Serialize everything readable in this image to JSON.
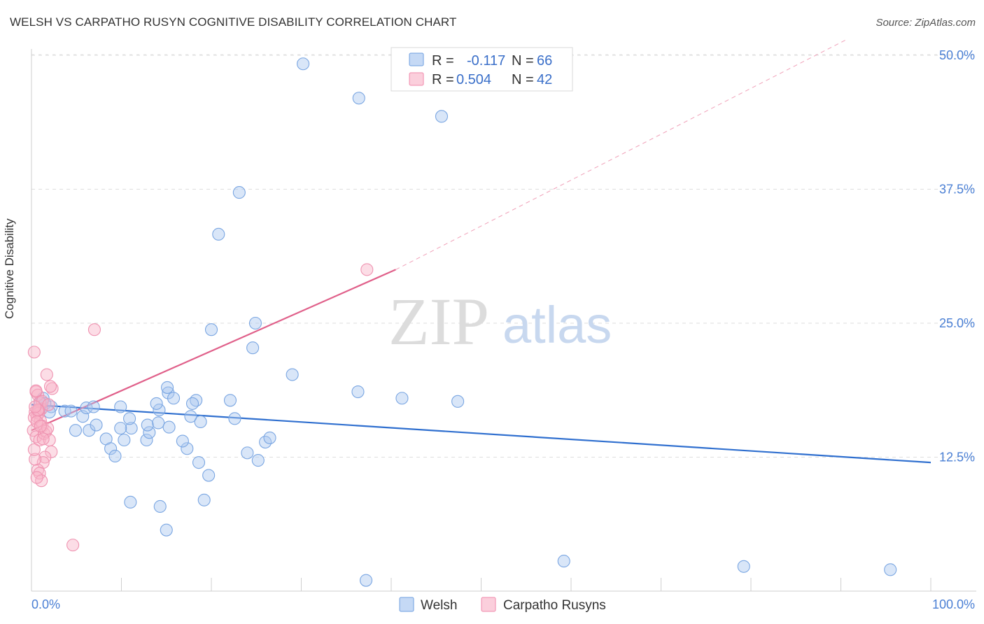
{
  "title": "WELSH VS CARPATHO RUSYN COGNITIVE DISABILITY CORRELATION CHART",
  "source": "Source: ZipAtlas.com",
  "watermark": {
    "zip": "ZIP",
    "atlas": "atlas"
  },
  "colors": {
    "welsh": "#6f9fe0",
    "welsh_line": "#2f6fcf",
    "rusyn": "#f08aab",
    "rusyn_line": "#e0608a",
    "axis_text": "#4a7fd4"
  },
  "legend": {
    "rows": [
      {
        "r_label": "R = ",
        "r_value": "-0.117",
        "n_label": "N = ",
        "n_value": "66"
      },
      {
        "r_label": "R = ",
        "r_value": "0.504",
        "n_label": "N = ",
        "n_value": "42"
      }
    ]
  },
  "chart_data": {
    "type": "scatter",
    "title": "WELSH VS CARPATHO RUSYN COGNITIVE DISABILITY CORRELATION CHART",
    "xlabel": "",
    "ylabel": "Cognitive Disability",
    "xlim": [
      0,
      100
    ],
    "ylim": [
      0,
      52
    ],
    "x_tick_labels": [
      "0.0%",
      "100.0%"
    ],
    "y_ticks": [
      12.5,
      25.0,
      37.5,
      50.0
    ],
    "y_tick_labels": [
      "12.5%",
      "25.0%",
      "37.5%",
      "50.0%"
    ],
    "series": [
      {
        "name": "Welsh",
        "x": [
          30.2,
          36.4,
          45.6,
          23.1,
          20.8,
          24.9,
          20.0,
          24.6,
          29.0,
          36.3,
          47.4,
          41.2,
          11.0,
          19.2,
          14.3,
          15.0,
          18.3,
          17.3,
          22.1,
          18.8,
          18.6,
          2.2,
          3.7,
          4.4,
          4.9,
          5.7,
          6.4,
          7.2,
          8.3,
          8.8,
          9.3,
          10.3,
          12.8,
          11.1,
          13.1,
          12.9,
          14.1,
          10.9,
          14.2,
          16.8,
          13.9,
          15.2,
          15.1,
          17.9,
          22.6,
          26.0,
          26.5,
          25.2,
          24.0,
          19.7,
          17.7,
          15.8,
          1.0,
          1.3,
          1.5,
          0.9,
          2.0,
          6.1,
          6.9,
          9.9,
          15.3,
          9.9,
          37.2,
          59.2,
          79.2,
          95.5
        ],
        "y": [
          49.2,
          46.0,
          44.3,
          37.2,
          33.3,
          25.0,
          24.4,
          22.7,
          20.2,
          18.6,
          17.7,
          18.0,
          8.3,
          8.5,
          7.9,
          5.7,
          17.8,
          13.3,
          17.8,
          15.8,
          12.0,
          17.2,
          16.8,
          16.8,
          15.0,
          16.3,
          15.0,
          15.5,
          14.2,
          13.3,
          12.6,
          14.1,
          14.1,
          15.2,
          14.8,
          15.5,
          15.7,
          16.1,
          16.9,
          14.0,
          17.5,
          18.5,
          19.0,
          17.5,
          16.1,
          13.9,
          14.3,
          12.2,
          12.9,
          10.8,
          16.3,
          18.0,
          17.6,
          18.0,
          17.5,
          16.9,
          16.7,
          17.1,
          17.2,
          17.2,
          15.3,
          15.2,
          1.0,
          2.8,
          2.3,
          2.0
        ],
        "trend": {
          "x0": 0,
          "y0": 17.4,
          "x1": 100,
          "y1": 12.0
        }
      },
      {
        "name": "Carpatho Rusyns",
        "x": [
          0.3,
          0.5,
          0.7,
          0.9,
          1.1,
          0.4,
          0.6,
          0.8,
          1.0,
          1.2,
          0.2,
          0.5,
          0.9,
          1.4,
          1.6,
          1.8,
          2.0,
          2.2,
          1.5,
          1.3,
          0.7,
          0.4,
          0.3,
          0.9,
          1.1,
          0.6,
          2.3,
          2.1,
          1.7,
          1.2,
          0.8,
          0.3,
          0.6,
          1.0,
          1.3,
          0.5,
          1.9,
          4.6,
          7.0,
          37.3,
          0.7,
          0.4
        ],
        "y": [
          22.3,
          18.6,
          18.3,
          17.6,
          17.0,
          16.7,
          16.3,
          16.6,
          15.9,
          15.4,
          15.0,
          14.4,
          14.1,
          14.7,
          14.9,
          15.2,
          14.1,
          13.0,
          12.5,
          12.0,
          11.3,
          12.3,
          13.2,
          11.0,
          10.3,
          10.6,
          18.9,
          19.1,
          20.2,
          17.7,
          16.9,
          16.2,
          15.8,
          15.4,
          14.2,
          18.7,
          17.4,
          4.3,
          24.4,
          30.0,
          16.9,
          17.2
        ],
        "trend": {
          "x0": 0,
          "y0": 15.0,
          "x1": 40.5,
          "y1": 30.0
        },
        "trend_extension": {
          "x0": 40.5,
          "y0": 30.0,
          "x1": 100,
          "y1": 52.0
        }
      }
    ],
    "legend": [
      "Welsh",
      "Carpatho Rusyns"
    ]
  }
}
